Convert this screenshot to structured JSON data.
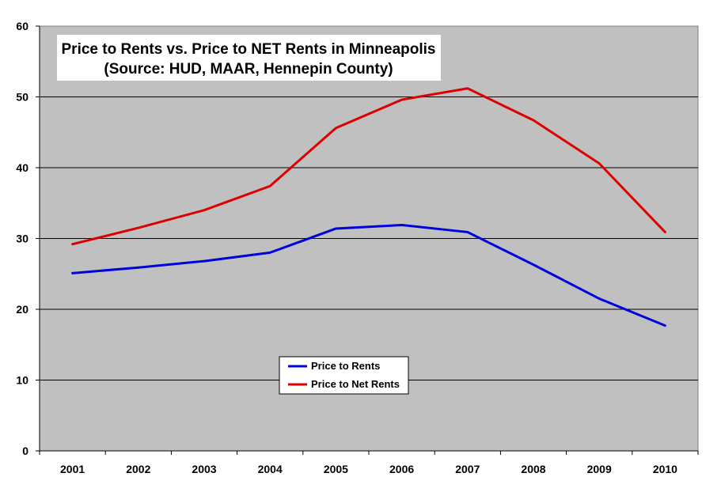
{
  "chart_data": {
    "type": "line",
    "title": [
      "Price to Rents vs. Price to NET Rents in Minneapolis",
      "(Source: HUD, MAAR, Hennepin County)"
    ],
    "xlabel": "",
    "ylabel": "",
    "categories": [
      "2001",
      "2002",
      "2003",
      "2004",
      "2005",
      "2006",
      "2007",
      "2008",
      "2009",
      "2010"
    ],
    "ylim": [
      0,
      60
    ],
    "yticks": [
      0,
      10,
      20,
      30,
      40,
      50,
      60
    ],
    "grid": true,
    "legend_position": "center-left",
    "series": [
      {
        "name": "Price to Rents",
        "color": "#0000dd",
        "values": [
          25.1,
          25.9,
          26.8,
          28.0,
          31.4,
          31.9,
          30.9,
          26.3,
          21.5,
          17.7
        ]
      },
      {
        "name": "Price to Net Rents",
        "color": "#dd0000",
        "values": [
          29.2,
          31.5,
          34.0,
          37.4,
          45.6,
          49.6,
          51.2,
          46.7,
          40.6,
          30.9
        ]
      }
    ]
  },
  "colors": {
    "plot_background": "#c0c0c0",
    "gridline": "#000000"
  }
}
